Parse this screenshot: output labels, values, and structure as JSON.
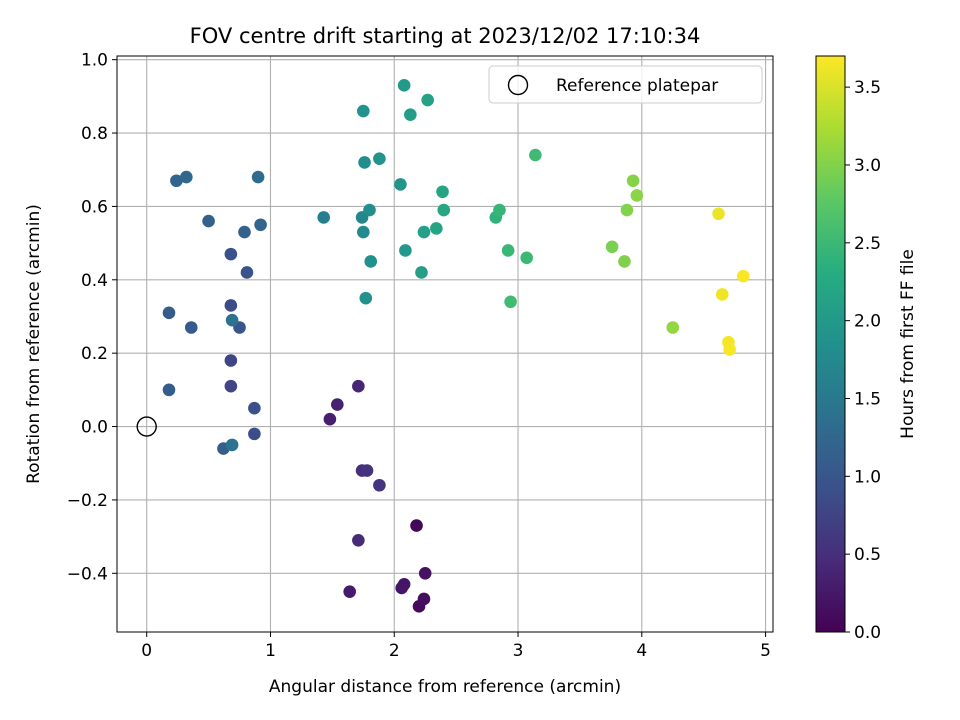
{
  "chart_data": {
    "type": "scatter",
    "title": "FOV centre drift starting at 2023/12/02 17:10:34",
    "xlabel": "Angular distance from reference (arcmin)",
    "ylabel": "Rotation from reference (arcmin)",
    "xlim": [
      -0.24,
      5.06
    ],
    "ylim": [
      -0.56,
      1.01
    ],
    "xticks": [
      0,
      1,
      2,
      3,
      4,
      5
    ],
    "yticks": [
      -0.4,
      -0.2,
      0.0,
      0.2,
      0.4,
      0.6,
      0.8,
      1.0
    ],
    "xtick_labels": [
      "0",
      "1",
      "2",
      "3",
      "4",
      "5"
    ],
    "ytick_labels": [
      "−0.4",
      "−0.2",
      "0.0",
      "0.2",
      "0.4",
      "0.6",
      "0.8",
      "1.0"
    ],
    "grid": true,
    "legend": {
      "position": "top-right",
      "entries": [
        {
          "label": "Reference platepar",
          "marker": "open-circle"
        }
      ]
    },
    "reference_point": {
      "x": 0.0,
      "y": 0.0
    },
    "colorbar": {
      "label": "Hours from first FF file",
      "range": [
        0.0,
        3.7
      ],
      "ticks": [
        0.0,
        0.5,
        1.0,
        1.5,
        2.0,
        2.5,
        3.0,
        3.5
      ],
      "tick_labels": [
        "0.0",
        "0.5",
        "1.0",
        "1.5",
        "2.0",
        "2.5",
        "3.0",
        "3.5"
      ],
      "colormap": "viridis"
    },
    "points": [
      {
        "x": 2.18,
        "y": -0.27,
        "h": 0.05
      },
      {
        "x": 2.2,
        "y": -0.49,
        "h": 0.1
      },
      {
        "x": 2.24,
        "y": -0.47,
        "h": 0.15
      },
      {
        "x": 2.25,
        "y": -0.4,
        "h": 0.18
      },
      {
        "x": 2.08,
        "y": -0.43,
        "h": 0.2
      },
      {
        "x": 2.06,
        "y": -0.44,
        "h": 0.23
      },
      {
        "x": 1.64,
        "y": -0.45,
        "h": 0.28
      },
      {
        "x": 1.48,
        "y": 0.02,
        "h": 0.33
      },
      {
        "x": 1.54,
        "y": 0.06,
        "h": 0.35
      },
      {
        "x": 1.71,
        "y": 0.11,
        "h": 0.4
      },
      {
        "x": 1.71,
        "y": -0.31,
        "h": 0.45
      },
      {
        "x": 1.74,
        "y": -0.12,
        "h": 0.5
      },
      {
        "x": 1.78,
        "y": -0.12,
        "h": 0.55
      },
      {
        "x": 1.88,
        "y": -0.16,
        "h": 0.58
      },
      {
        "x": 0.68,
        "y": 0.11,
        "h": 0.78
      },
      {
        "x": 0.68,
        "y": 0.18,
        "h": 0.8
      },
      {
        "x": 0.68,
        "y": 0.33,
        "h": 0.85
      },
      {
        "x": 0.87,
        "y": -0.02,
        "h": 0.88
      },
      {
        "x": 0.87,
        "y": 0.05,
        "h": 0.9
      },
      {
        "x": 0.68,
        "y": 0.47,
        "h": 0.92
      },
      {
        "x": 0.81,
        "y": 0.42,
        "h": 0.95
      },
      {
        "x": 0.75,
        "y": 0.27,
        "h": 1.0
      },
      {
        "x": 0.36,
        "y": 0.27,
        "h": 1.05
      },
      {
        "x": 0.18,
        "y": 0.31,
        "h": 1.08
      },
      {
        "x": 0.18,
        "y": 0.1,
        "h": 1.1
      },
      {
        "x": 0.62,
        "y": -0.06,
        "h": 1.12
      },
      {
        "x": 0.5,
        "y": 0.56,
        "h": 1.15
      },
      {
        "x": 0.79,
        "y": 0.53,
        "h": 1.18
      },
      {
        "x": 0.92,
        "y": 0.55,
        "h": 1.2
      },
      {
        "x": 0.24,
        "y": 0.67,
        "h": 1.22
      },
      {
        "x": 0.32,
        "y": 0.68,
        "h": 1.25
      },
      {
        "x": 0.9,
        "y": 0.68,
        "h": 1.3
      },
      {
        "x": 0.69,
        "y": 0.29,
        "h": 1.4
      },
      {
        "x": 0.69,
        "y": -0.05,
        "h": 1.42
      },
      {
        "x": 1.43,
        "y": 0.57,
        "h": 1.6
      },
      {
        "x": 1.74,
        "y": 0.57,
        "h": 1.7
      },
      {
        "x": 1.75,
        "y": 0.53,
        "h": 1.78
      },
      {
        "x": 1.76,
        "y": 0.72,
        "h": 1.8
      },
      {
        "x": 1.8,
        "y": 0.59,
        "h": 1.82
      },
      {
        "x": 1.81,
        "y": 0.45,
        "h": 1.86
      },
      {
        "x": 1.77,
        "y": 0.35,
        "h": 1.88
      },
      {
        "x": 1.75,
        "y": 0.86,
        "h": 1.9
      },
      {
        "x": 1.88,
        "y": 0.73,
        "h": 1.92
      },
      {
        "x": 2.05,
        "y": 0.66,
        "h": 1.95
      },
      {
        "x": 2.09,
        "y": 0.48,
        "h": 1.98
      },
      {
        "x": 2.08,
        "y": 0.93,
        "h": 2.0
      },
      {
        "x": 2.13,
        "y": 0.85,
        "h": 2.05
      },
      {
        "x": 2.22,
        "y": 0.42,
        "h": 2.08
      },
      {
        "x": 2.24,
        "y": 0.53,
        "h": 2.1
      },
      {
        "x": 2.27,
        "y": 0.89,
        "h": 2.12
      },
      {
        "x": 2.34,
        "y": 0.54,
        "h": 2.15
      },
      {
        "x": 2.39,
        "y": 0.64,
        "h": 2.18
      },
      {
        "x": 2.4,
        "y": 0.59,
        "h": 2.2
      },
      {
        "x": 2.82,
        "y": 0.57,
        "h": 2.4
      },
      {
        "x": 2.85,
        "y": 0.59,
        "h": 2.45
      },
      {
        "x": 2.92,
        "y": 0.48,
        "h": 2.48
      },
      {
        "x": 2.94,
        "y": 0.34,
        "h": 2.55
      },
      {
        "x": 3.07,
        "y": 0.46,
        "h": 2.5
      },
      {
        "x": 3.14,
        "y": 0.74,
        "h": 2.52
      },
      {
        "x": 3.76,
        "y": 0.49,
        "h": 2.95
      },
      {
        "x": 3.86,
        "y": 0.45,
        "h": 2.98
      },
      {
        "x": 3.88,
        "y": 0.59,
        "h": 3.0
      },
      {
        "x": 3.93,
        "y": 0.67,
        "h": 3.02
      },
      {
        "x": 3.96,
        "y": 0.63,
        "h": 3.05
      },
      {
        "x": 4.25,
        "y": 0.27,
        "h": 3.1
      },
      {
        "x": 4.62,
        "y": 0.58,
        "h": 3.6
      },
      {
        "x": 4.65,
        "y": 0.36,
        "h": 3.62
      },
      {
        "x": 4.7,
        "y": 0.23,
        "h": 3.65
      },
      {
        "x": 4.71,
        "y": 0.21,
        "h": 3.66
      },
      {
        "x": 4.82,
        "y": 0.41,
        "h": 3.68
      }
    ]
  }
}
